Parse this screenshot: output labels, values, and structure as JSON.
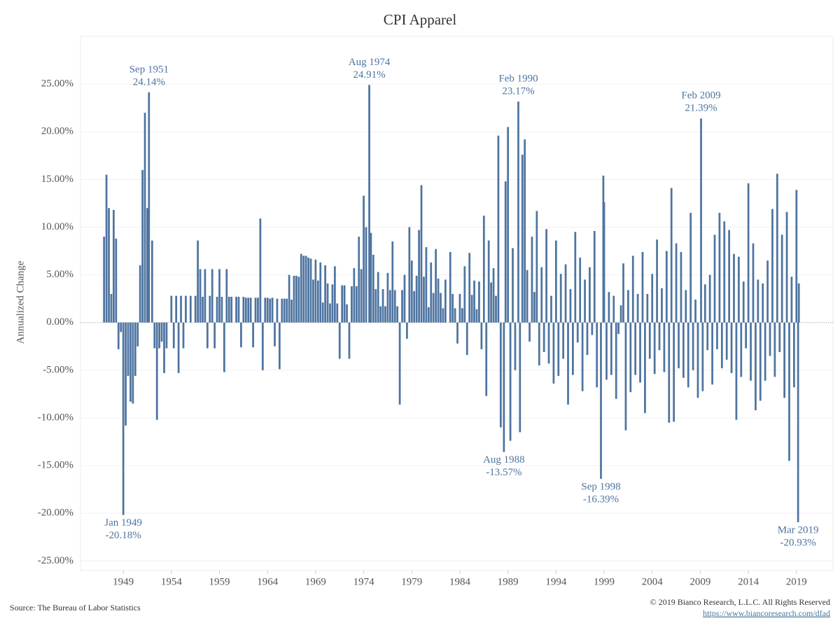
{
  "chart_data": {
    "type": "bar",
    "title": "CPI Apparel",
    "y_label": "Annualized Change",
    "source": "Source: The Bureau of Labor Statistics",
    "copyright": "© 2019 Bianco Research, L.L.C. All Rights Reserved",
    "url": "https://www.biancoresearch.com/dfad",
    "color": "#4e74a0",
    "grid": true,
    "xlim": [
      1944.55,
      2022.8
    ],
    "ylim": [
      -26,
      30
    ],
    "xticks": [
      1949,
      1954,
      1959,
      1964,
      1969,
      1974,
      1979,
      1984,
      1989,
      1994,
      1999,
      2004,
      2009,
      2014,
      2019
    ],
    "yticks": [
      {
        "value": -25,
        "label": "-25.00%"
      },
      {
        "value": -20,
        "label": "-20.00%"
      },
      {
        "value": -15,
        "label": "-15.00%"
      },
      {
        "value": -10,
        "label": "-10.00%"
      },
      {
        "value": -5,
        "label": "-5.00%"
      },
      {
        "value": 0,
        "label": "0.00%"
      },
      {
        "value": 5,
        "label": "5.00%"
      },
      {
        "value": 10,
        "label": "10.00%"
      },
      {
        "value": 15,
        "label": "15.00%"
      },
      {
        "value": 20,
        "label": "20.00%"
      },
      {
        "value": 25,
        "label": "25.00%"
      }
    ],
    "annotations": [
      {
        "label": "Jan 1949",
        "value_label": "-20.18%",
        "x": 1949.0,
        "value": -20.18
      },
      {
        "label": "Sep 1951",
        "value_label": "24.14%",
        "x": 1951.67,
        "value": 24.14
      },
      {
        "label": "Aug 1974",
        "value_label": "24.91%",
        "x": 1974.58,
        "value": 24.91
      },
      {
        "label": "Aug 1988",
        "value_label": "-13.57%",
        "x": 1988.58,
        "value": -13.57
      },
      {
        "label": "Feb 1990",
        "value_label": "23.17%",
        "x": 1990.08,
        "value": 23.17
      },
      {
        "label": "Sep 1998",
        "value_label": "-16.39%",
        "x": 1998.67,
        "value": -16.39
      },
      {
        "label": "Feb 2009",
        "value_label": "21.39%",
        "x": 2009.08,
        "value": 21.39
      },
      {
        "label": "Mar 2019",
        "value_label": "-20.93%",
        "x": 2019.17,
        "value": -20.93
      }
    ],
    "x": [
      1947,
      1947.25,
      1947.5,
      1947.75,
      1948,
      1948.25,
      1948.5,
      1948.75,
      1949,
      1949.25,
      1949.5,
      1949.75,
      1950,
      1950.25,
      1950.5,
      1950.75,
      1951,
      1951.25,
      1951.5,
      1951.67,
      1952,
      1952.25,
      1952.5,
      1952.75,
      1953,
      1953.25,
      1953.5,
      1953.75,
      1954,
      1954.25,
      1954.5,
      1954.75,
      1955,
      1955.25,
      1955.5,
      1955.75,
      1956,
      1956.25,
      1956.5,
      1956.75,
      1957,
      1957.25,
      1957.5,
      1957.75,
      1958,
      1958.25,
      1958.5,
      1958.75,
      1959,
      1959.25,
      1959.5,
      1959.75,
      1960,
      1960.25,
      1960.5,
      1960.75,
      1961,
      1961.25,
      1961.5,
      1961.75,
      1962,
      1962.25,
      1962.5,
      1962.75,
      1963,
      1963.25,
      1963.5,
      1963.75,
      1964,
      1964.25,
      1964.5,
      1964.75,
      1965,
      1965.25,
      1965.5,
      1965.75,
      1966,
      1966.25,
      1966.5,
      1966.75,
      1967,
      1967.25,
      1967.5,
      1967.75,
      1968,
      1968.25,
      1968.5,
      1968.75,
      1969,
      1969.25,
      1969.5,
      1969.75,
      1970,
      1970.25,
      1970.5,
      1970.75,
      1971,
      1971.25,
      1971.5,
      1971.75,
      1972,
      1972.25,
      1972.5,
      1972.75,
      1973,
      1973.25,
      1973.5,
      1973.75,
      1974,
      1974.25,
      1974.58,
      1974.75,
      1975,
      1975.25,
      1975.5,
      1975.75,
      1976,
      1976.25,
      1976.5,
      1976.75,
      1977,
      1977.25,
      1977.5,
      1977.75,
      1978,
      1978.25,
      1978.5,
      1978.75,
      1979,
      1979.25,
      1979.5,
      1979.75,
      1980,
      1980.25,
      1980.5,
      1980.75,
      1981,
      1981.25,
      1981.5,
      1981.75,
      1982,
      1982.25,
      1982.5,
      1982.75,
      1983,
      1983.25,
      1983.5,
      1983.75,
      1984,
      1984.25,
      1984.5,
      1984.75,
      1985,
      1985.25,
      1985.5,
      1985.75,
      1986,
      1986.25,
      1986.5,
      1986.75,
      1987,
      1987.25,
      1987.5,
      1987.75,
      1988,
      1988.25,
      1988.58,
      1988.75,
      1989,
      1989.25,
      1989.5,
      1989.75,
      1990.08,
      1990.25,
      1990.5,
      1990.75,
      1991,
      1991.25,
      1991.5,
      1991.75,
      1992,
      1992.25,
      1992.5,
      1992.75,
      1993,
      1993.25,
      1993.5,
      1993.75,
      1994,
      1994.25,
      1994.5,
      1994.75,
      1995,
      1995.25,
      1995.5,
      1995.75,
      1996,
      1996.25,
      1996.5,
      1996.75,
      1997,
      1997.25,
      1997.5,
      1997.75,
      1998,
      1998.25,
      1998.67,
      1998.92,
      1999,
      1999.25,
      1999.5,
      1999.75,
      2000,
      2000.25,
      2000.5,
      2000.75,
      2001,
      2001.25,
      2001.5,
      2001.75,
      2002,
      2002.25,
      2002.5,
      2002.75,
      2003,
      2003.25,
      2003.5,
      2003.75,
      2004,
      2004.25,
      2004.5,
      2004.75,
      2005,
      2005.25,
      2005.5,
      2005.75,
      2006,
      2006.25,
      2006.5,
      2006.75,
      2007,
      2007.25,
      2007.5,
      2007.75,
      2008,
      2008.25,
      2008.5,
      2008.75,
      2009.08,
      2009.25,
      2009.5,
      2009.75,
      2010,
      2010.25,
      2010.5,
      2010.75,
      2011,
      2011.25,
      2011.5,
      2011.75,
      2012,
      2012.25,
      2012.5,
      2012.75,
      2013,
      2013.25,
      2013.5,
      2013.75,
      2014,
      2014.25,
      2014.5,
      2014.75,
      2015,
      2015.25,
      2015.5,
      2015.75,
      2016,
      2016.25,
      2016.5,
      2016.75,
      2017,
      2017.25,
      2017.5,
      2017.75,
      2018,
      2018.25,
      2018.5,
      2018.75,
      2019,
      2019.17,
      2019.25
    ],
    "values": [
      9,
      15.5,
      12,
      3,
      11.8,
      8.8,
      -2.8,
      -1,
      -20.18,
      -10.8,
      -5.6,
      -8.3,
      -8.5,
      -5.6,
      -2.5,
      6,
      16,
      22,
      12,
      24.14,
      8.6,
      -2.7,
      -10.2,
      -2.7,
      -2,
      -5.3,
      -2.7,
      0,
      2.8,
      -2.7,
      2.8,
      -5.3,
      2.8,
      -2.7,
      2.8,
      0,
      2.8,
      0,
      2.8,
      8.6,
      5.6,
      2.7,
      5.6,
      -2.7,
      2.8,
      5.6,
      -2.7,
      2.7,
      5.6,
      2.7,
      -5.2,
      5.6,
      2.7,
      2.7,
      0,
      2.7,
      2.7,
      -2.6,
      2.7,
      2.6,
      2.6,
      2.6,
      -2.6,
      2.6,
      2.6,
      10.9,
      -5,
      2.6,
      2.6,
      2.5,
      2.6,
      -2.5,
      2.5,
      -4.9,
      2.5,
      2.5,
      2.5,
      5,
      2.4,
      4.9,
      4.9,
      4.8,
      7.2,
      7,
      7,
      6.8,
      6.7,
      4.5,
      6.6,
      4.4,
      6.3,
      2.1,
      6,
      4.1,
      2,
      4,
      5.9,
      2,
      -3.8,
      3.9,
      3.9,
      1.9,
      -3.8,
      3.8,
      5.7,
      3.8,
      9,
      5.6,
      13.3,
      10,
      24.91,
      9.4,
      7.1,
      3.5,
      5.3,
      1.7,
      3.5,
      1.7,
      5.2,
      3.4,
      8.5,
      3.4,
      1.7,
      -8.6,
      3.4,
      5,
      -1.7,
      10,
      6.5,
      3.3,
      4.9,
      9.7,
      14.4,
      4.8,
      7.9,
      1.6,
      6.3,
      3.1,
      7.7,
      4.6,
      3.1,
      1.5,
      4.5,
      0,
      7.4,
      3,
      1.5,
      -2.2,
      3,
      1.5,
      5.9,
      -3.4,
      7.3,
      2.9,
      4.4,
      1.4,
      4.3,
      -2.8,
      11.2,
      -7.7,
      8.6,
      4.2,
      5.7,
      2.8,
      19.6,
      -11,
      -13.57,
      14.8,
      20.5,
      -12.4,
      7.8,
      -5,
      23.17,
      -11.5,
      17.6,
      19.2,
      5.5,
      -2,
      9,
      3.2,
      11.7,
      -4.5,
      5.8,
      -3.1,
      9.8,
      -4.3,
      2.8,
      -6.4,
      8.6,
      -5.6,
      5.1,
      -3.8,
      6.1,
      -8.6,
      3.5,
      -5.5,
      9.5,
      -2.1,
      6.8,
      -7.2,
      4.5,
      -3.4,
      5.8,
      -1.3,
      9.6,
      -6.8,
      -16.39,
      15.4,
      12.6,
      -6,
      3.2,
      -5.5,
      2.8,
      -8,
      -1.2,
      1.8,
      6.2,
      -11.3,
      3.4,
      -7.3,
      7,
      -5.5,
      3,
      -6.3,
      7.4,
      -9.5,
      3,
      -3.8,
      5.1,
      -5.4,
      8.7,
      -2.9,
      3.6,
      -5.2,
      7.5,
      -10.5,
      14.1,
      -10.4,
      8.3,
      -4.8,
      7.4,
      -5.8,
      3.4,
      -6.8,
      11.5,
      -5,
      2.4,
      -7.9,
      21.39,
      -7.2,
      4,
      -2.9,
      5,
      -6.5,
      9.2,
      -2.8,
      11.5,
      -4.8,
      10.6,
      -3.9,
      9.7,
      -5.3,
      7.2,
      -10.2,
      6.9,
      -5.7,
      4.3,
      -2.7,
      14.6,
      -6.1,
      8.3,
      -9.2,
      4.5,
      -8.2,
      4.1,
      -6.1,
      6.5,
      -3.5,
      11.9,
      -5.7,
      15.6,
      -3.1,
      9.2,
      -7.9,
      11.6,
      -14.5,
      4.8,
      -6.8,
      13.9,
      -20.93,
      4.1
    ]
  }
}
